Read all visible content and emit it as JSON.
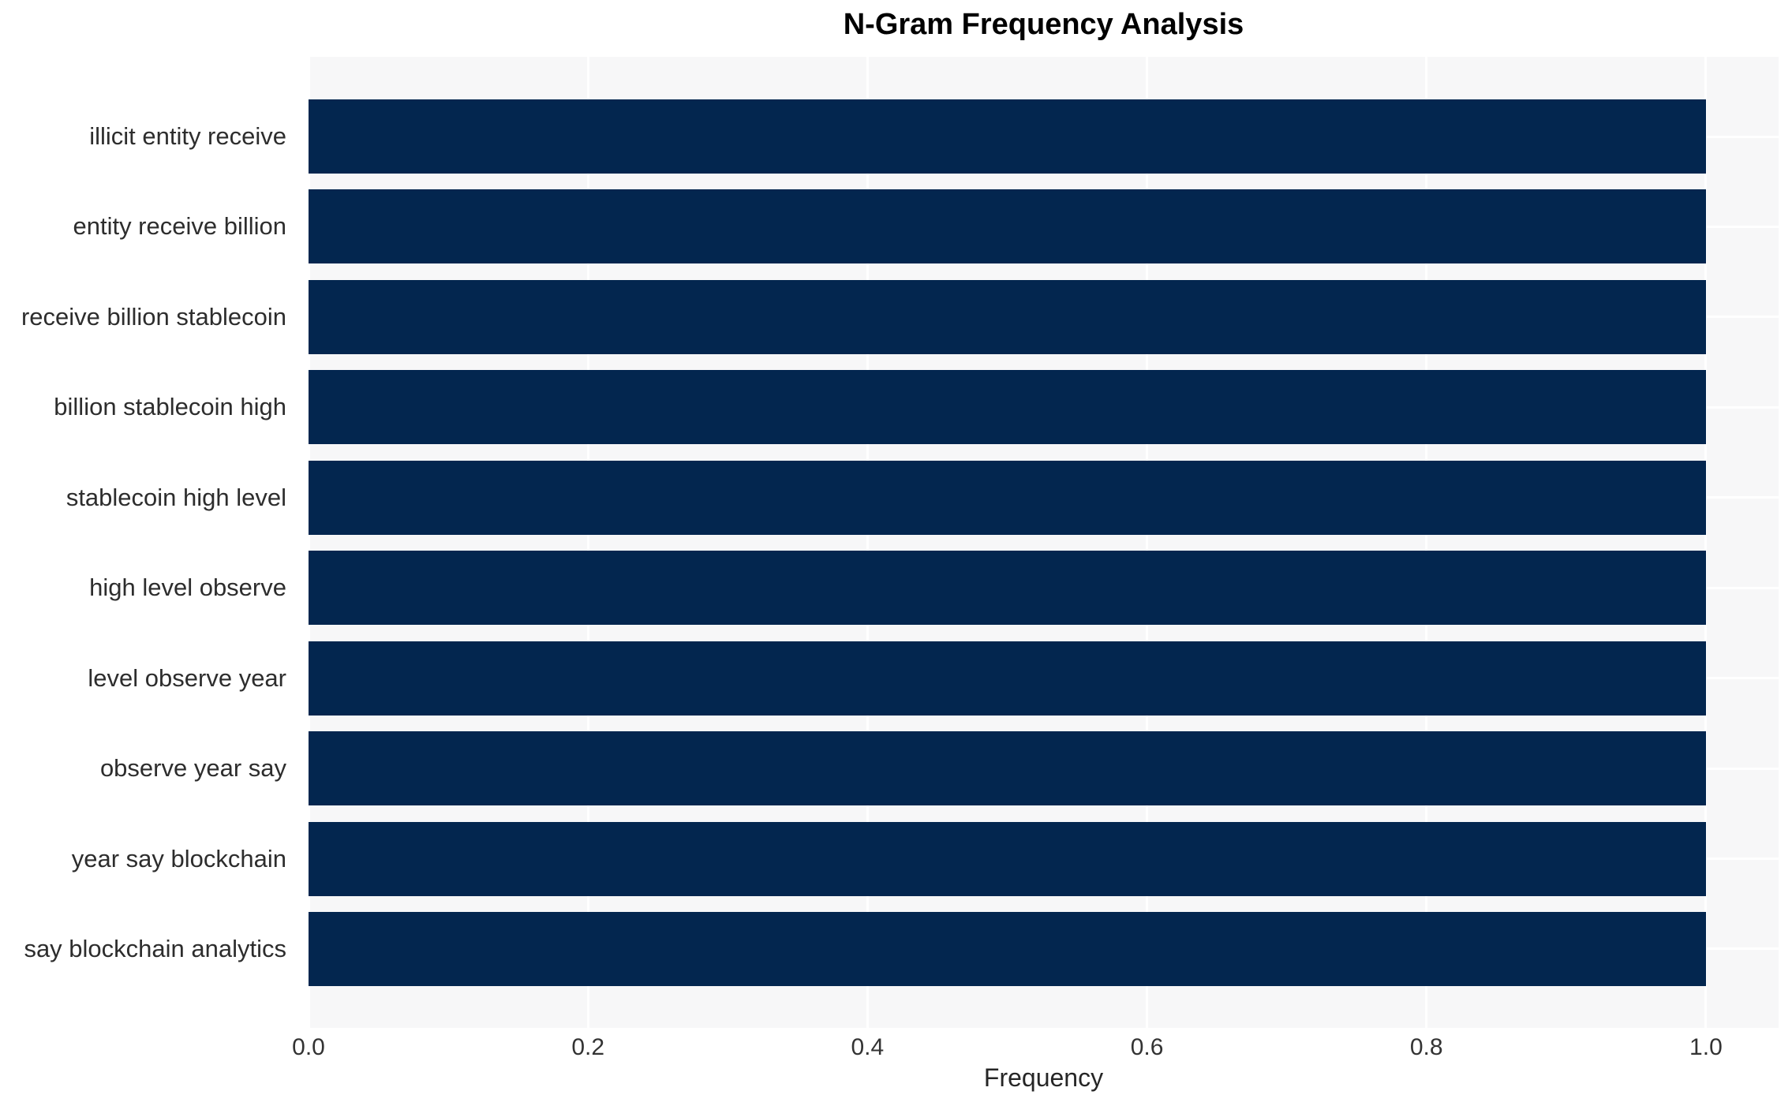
{
  "title": "N-Gram Frequency Analysis",
  "axes": {
    "xlabel": "Frequency",
    "ylabel": "",
    "x_tick_labels": [
      "0.0",
      "0.2",
      "0.4",
      "0.6",
      "0.8",
      "1.0"
    ]
  },
  "colors": {
    "bar": "#03264f",
    "plot_background": "#f7f7f8",
    "gridline": "#ffffff",
    "tick_text": "#333333",
    "title_text": "#000000"
  },
  "chart_data": {
    "type": "bar",
    "orientation": "horizontal",
    "title": "N-Gram Frequency Analysis",
    "xlabel": "Frequency",
    "ylabel": "",
    "categories": [
      "illicit entity receive",
      "entity receive billion",
      "receive billion stablecoin",
      "billion stablecoin high",
      "stablecoin high level",
      "high level observe",
      "level observe year",
      "observe year say",
      "year say blockchain",
      "say blockchain analytics"
    ],
    "values": [
      1.0,
      1.0,
      1.0,
      1.0,
      1.0,
      1.0,
      1.0,
      1.0,
      1.0,
      1.0
    ],
    "xlim": [
      0.0,
      1.052
    ],
    "x_tick_values": [
      0.0,
      0.2,
      0.4,
      0.6,
      0.8,
      1.0
    ],
    "grid": true,
    "grid_axis": "both",
    "legend": false,
    "bar_color": "#03264f"
  }
}
